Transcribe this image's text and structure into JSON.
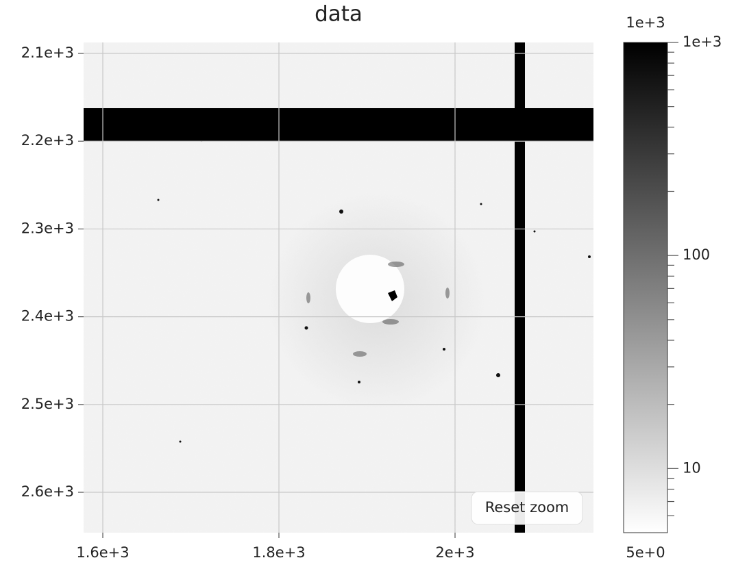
{
  "chart_data": {
    "type": "heatmap",
    "title": "data",
    "xlim": [
      1578.2,
      2157.2
    ],
    "xticks": [
      {
        "value": 1600,
        "label": "1.6e+3"
      },
      {
        "value": 1800,
        "label": "1.8e+3"
      },
      {
        "value": 2000,
        "label": "2e+3"
      }
    ],
    "ylim": [
      2087.5,
      2646
    ],
    "yticks": [
      {
        "value": 2100,
        "label": "2.1e+3"
      },
      {
        "value": 2200,
        "label": "2.2e+3"
      },
      {
        "value": 2300,
        "label": "2.3e+3"
      },
      {
        "value": 2400,
        "label": "2.4e+3"
      },
      {
        "value": 2500,
        "label": "2.5e+3"
      },
      {
        "value": 2600,
        "label": "2.6e+3"
      }
    ],
    "grid": true,
    "colorbar": {
      "scale": "log",
      "colors": [
        "#ffffff",
        "#000000"
      ],
      "limits": [
        {
          "value": 5,
          "label": "5e+0"
        },
        {
          "value": 1000,
          "label": "1e+3"
        }
      ],
      "ticks": [
        {
          "value": 1000,
          "label": "1e+3"
        },
        100,
        10
      ],
      "minor_ticks": [
        6,
        7,
        8,
        9,
        20,
        30,
        40,
        50,
        60,
        70,
        80,
        90,
        200,
        300,
        400,
        500,
        600,
        700,
        800,
        900
      ]
    }
  },
  "reset_button": "Reset zoom"
}
